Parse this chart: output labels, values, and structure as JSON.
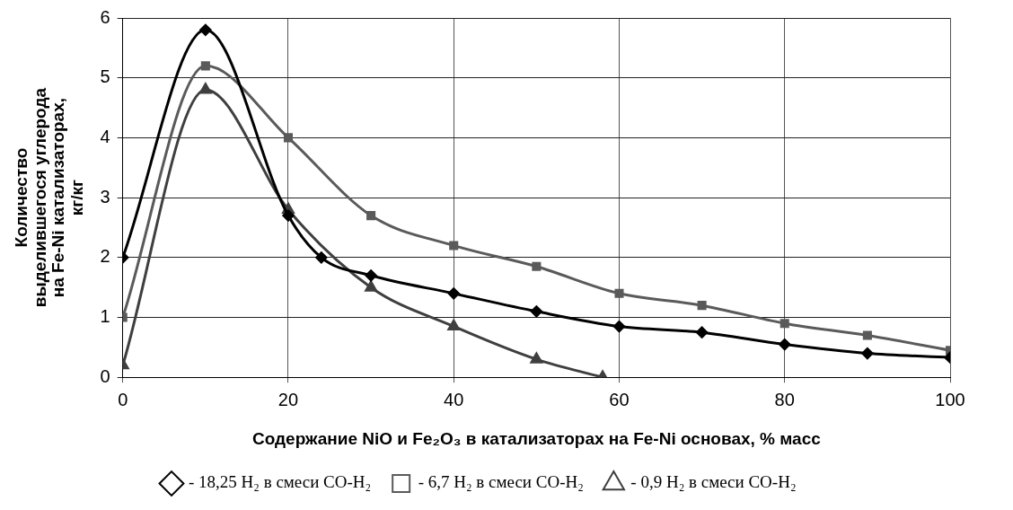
{
  "chart_data": {
    "type": "line",
    "xlabel": "Содержание NiO и Fe₂O₃ в катализаторах на Fe-Ni основах, % масс",
    "ylabel": "Количество\nвыделившегося углерода\nна Fe-Ni катализаторах,\nкг/кг",
    "series": [
      {
        "name": "- 18,25 H₂ в смеси CO-H₂",
        "color": "#000000",
        "marker": "diamond",
        "x": [
          0,
          10,
          20,
          24,
          30,
          40,
          50,
          60,
          70,
          80,
          90,
          100
        ],
        "values": [
          2.0,
          5.8,
          2.7,
          2.0,
          1.7,
          1.4,
          1.1,
          0.85,
          0.75,
          0.55,
          0.4,
          0.33
        ]
      },
      {
        "name": "- 6,7 H₂ в смеси CO-H₂",
        "color": "#5a5a5a",
        "marker": "square",
        "x": [
          0,
          10,
          20,
          30,
          40,
          50,
          60,
          70,
          80,
          90,
          100
        ],
        "values": [
          1.0,
          5.2,
          4.0,
          2.7,
          2.2,
          1.85,
          1.4,
          1.2,
          0.9,
          0.7,
          0.45
        ]
      },
      {
        "name": "- 0,9 H₂ в смеси CO-H₂",
        "color": "#3f3f3f",
        "marker": "triangle",
        "x": [
          0,
          10,
          20,
          30,
          40,
          50,
          58
        ],
        "values": [
          0.2,
          4.8,
          2.8,
          1.5,
          0.85,
          0.3,
          0.0
        ]
      }
    ],
    "xlim": [
      0,
      100
    ],
    "xticks": [
      0,
      20,
      40,
      60,
      80,
      100
    ],
    "ylim": [
      0,
      6
    ],
    "yticks": [
      0,
      1,
      2,
      3,
      4,
      5,
      6
    ],
    "grid": true,
    "legend": "bottom"
  }
}
